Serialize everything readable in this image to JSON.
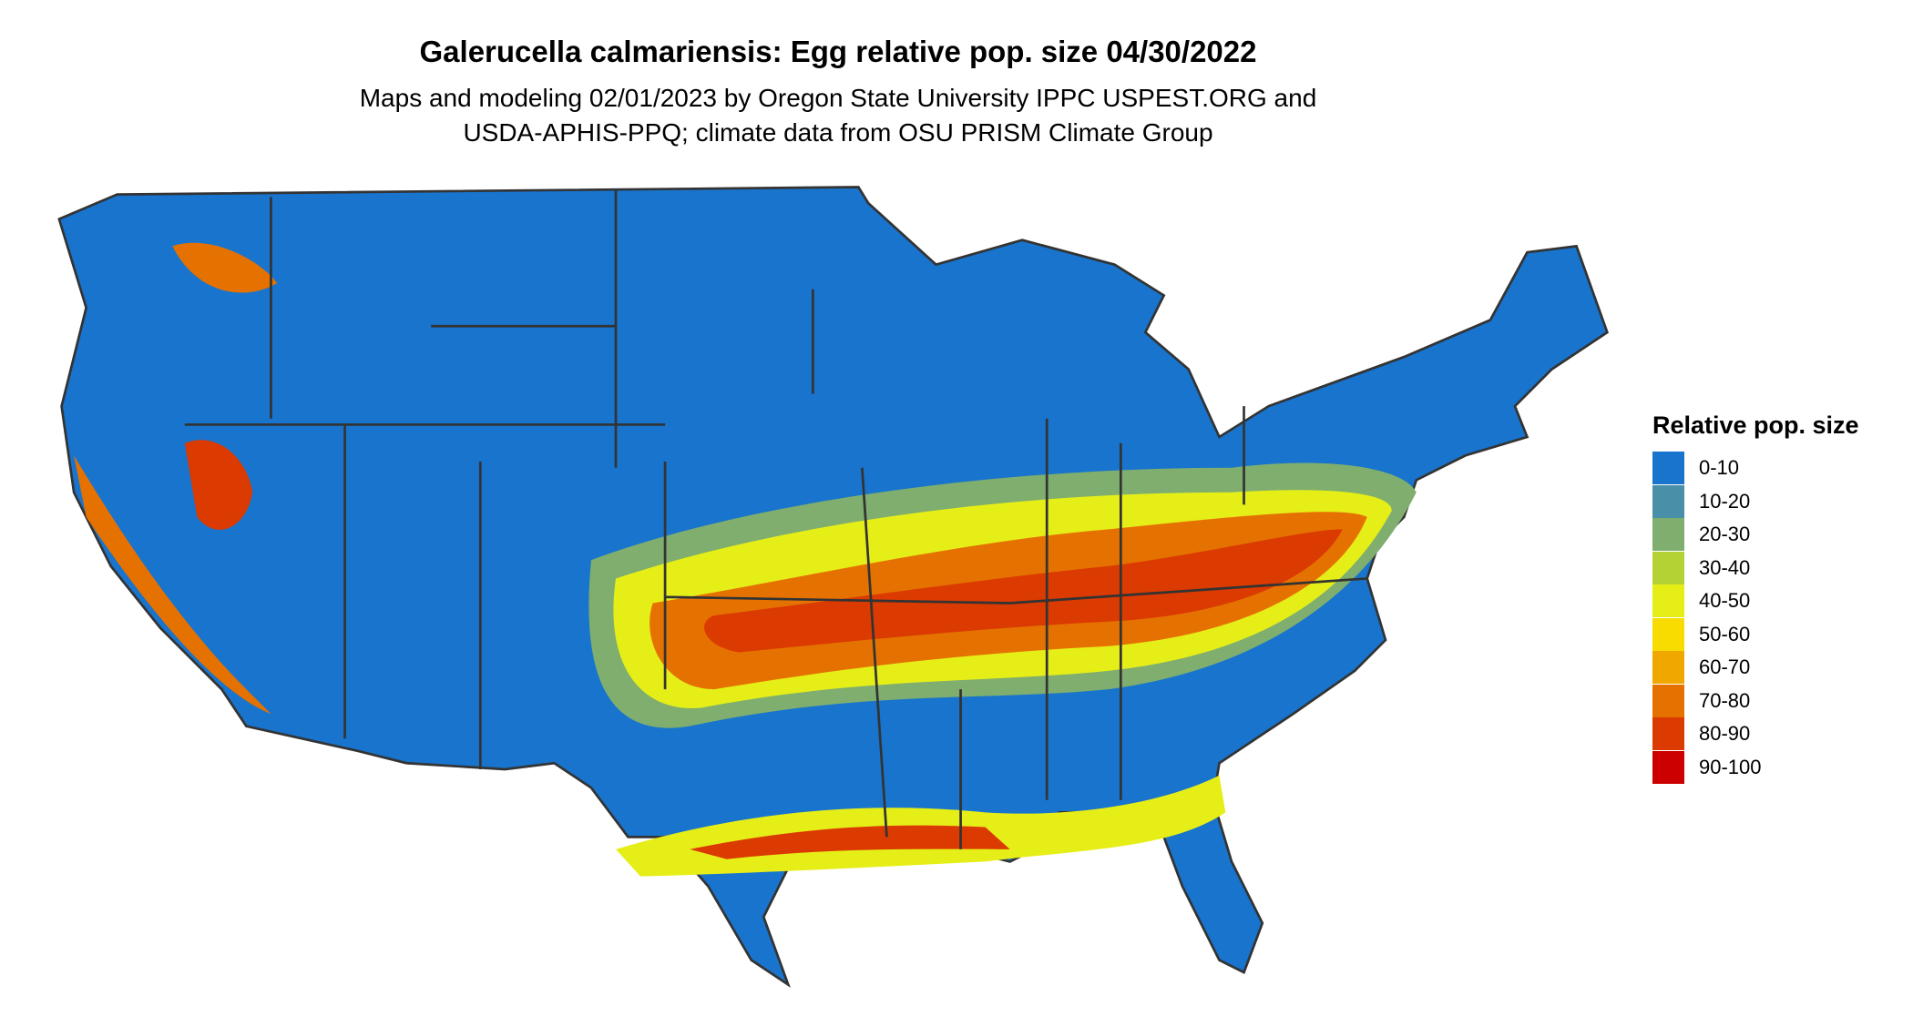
{
  "title": "Galerucella calmariensis: Egg relative pop. size 04/30/2022",
  "subtitle": [
    "Maps and modeling 02/01/2023 by Oregon State University IPPC USPEST.ORG and",
    "USDA-APHIS-PPQ; climate data from OSU PRISM Climate Group"
  ],
  "legend": {
    "title": "Relative pop. size",
    "items": [
      {
        "label": "0-10",
        "color": "#1874cd"
      },
      {
        "label": "10-20",
        "color": "#4a8fa8"
      },
      {
        "label": "20-30",
        "color": "#7fae6e"
      },
      {
        "label": "30-40",
        "color": "#b4d234"
      },
      {
        "label": "40-50",
        "color": "#e6ee18"
      },
      {
        "label": "50-60",
        "color": "#f8dc00"
      },
      {
        "label": "60-70",
        "color": "#f0a800"
      },
      {
        "label": "70-80",
        "color": "#e57200"
      },
      {
        "label": "80-90",
        "color": "#db3a00"
      },
      {
        "label": "90-100",
        "color": "#cc0000"
      }
    ]
  }
}
